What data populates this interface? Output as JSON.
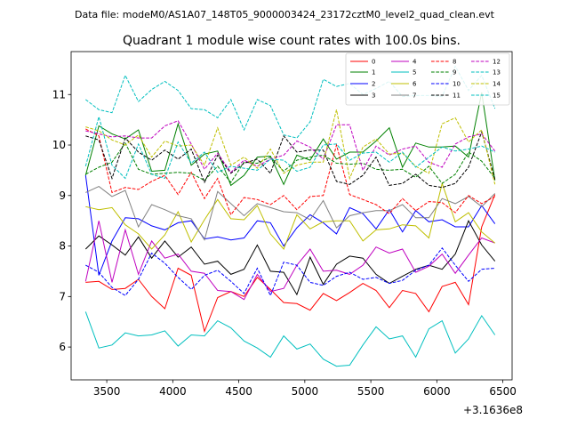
{
  "suptitle": "Data file: modeM0/AS1A07_148T05_9000003424_23172cztM0_level2_quad_clean.evt",
  "chart_data": {
    "type": "line",
    "title": "Quadrant 1 module wise count rates with 100.0s bins.",
    "xlabel": "",
    "ylabel": "",
    "x_offset_label": "+3.1636e8",
    "xlim": [
      3230,
      6570
    ],
    "ylim": [
      5.35,
      11.85
    ],
    "xticks": [
      3500,
      4000,
      4500,
      5000,
      5500,
      6000,
      6500
    ],
    "yticks": [
      6,
      7,
      8,
      9,
      10,
      11
    ],
    "legend_position": "top-right",
    "x": [
      3340,
      3440,
      3540,
      3640,
      3740,
      3840,
      3940,
      4040,
      4140,
      4240,
      4340,
      4440,
      4540,
      4640,
      4740,
      4840,
      4940,
      5040,
      5140,
      5240,
      5340,
      5440,
      5540,
      5640,
      5740,
      5840,
      5940,
      6040,
      6140,
      6240,
      6340,
      6440
    ],
    "series": [
      {
        "name": "0",
        "color": "#ff0000",
        "dash": "solid",
        "values": [
          7.28,
          7.3,
          7.14,
          7.16,
          7.34,
          7.0,
          6.76,
          7.56,
          7.42,
          6.31,
          6.98,
          7.1,
          7.0,
          7.38,
          7.14,
          6.88,
          6.86,
          6.73,
          7.06,
          6.92,
          7.08,
          7.26,
          7.12,
          6.78,
          7.12,
          7.06,
          6.7,
          7.2,
          7.28,
          6.84,
          8.38,
          9.02
        ]
      },
      {
        "name": "1",
        "color": "#008000",
        "dash": "solid",
        "values": [
          9.4,
          10.38,
          10.22,
          10.12,
          10.3,
          9.48,
          9.5,
          10.42,
          9.6,
          9.82,
          9.88,
          9.2,
          9.4,
          9.76,
          9.78,
          9.22,
          9.8,
          9.7,
          10.12,
          9.72,
          9.86,
          9.86,
          10.08,
          10.34,
          9.56,
          10.04,
          9.96,
          9.96,
          9.98,
          9.76,
          11.04,
          9.3
        ]
      },
      {
        "name": "2",
        "color": "#0000ff",
        "dash": "solid",
        "values": [
          9.4,
          7.42,
          8.1,
          8.56,
          8.54,
          8.4,
          8.32,
          8.46,
          8.5,
          8.14,
          8.18,
          8.12,
          8.16,
          8.5,
          8.46,
          8.0,
          8.36,
          8.62,
          8.46,
          8.24,
          8.76,
          8.64,
          8.34,
          8.72,
          8.28,
          8.7,
          8.48,
          8.52,
          8.38,
          8.38,
          8.8,
          8.44
        ]
      },
      {
        "name": "3",
        "color": "#000000",
        "dash": "solid",
        "values": [
          7.94,
          8.2,
          8.02,
          7.82,
          8.18,
          7.76,
          8.1,
          7.78,
          7.98,
          7.64,
          7.7,
          7.44,
          7.54,
          8.02,
          7.5,
          7.48,
          7.04,
          7.78,
          7.24,
          7.64,
          7.8,
          7.76,
          7.44,
          7.26,
          7.4,
          7.54,
          7.62,
          7.54,
          7.84,
          8.5,
          8.02,
          7.7
        ]
      },
      {
        "name": "4",
        "color": "#bf00bf",
        "dash": "solid",
        "values": [
          7.3,
          8.5,
          7.28,
          8.32,
          7.44,
          8.1,
          7.76,
          7.84,
          7.5,
          7.46,
          7.12,
          7.1,
          6.94,
          7.44,
          7.1,
          7.16,
          7.62,
          7.94,
          7.5,
          7.52,
          7.44,
          7.62,
          7.98,
          7.86,
          7.94,
          7.48,
          7.6,
          7.84,
          7.46,
          7.82,
          8.16,
          8.06
        ]
      },
      {
        "name": "5",
        "color": "#00bfbf",
        "dash": "solid",
        "values": [
          6.7,
          5.98,
          6.04,
          6.28,
          6.22,
          6.24,
          6.32,
          6.02,
          6.24,
          6.22,
          6.52,
          6.38,
          6.12,
          5.98,
          5.8,
          6.22,
          5.96,
          6.06,
          5.76,
          5.62,
          5.64,
          6.04,
          6.4,
          6.16,
          6.22,
          5.8,
          6.36,
          6.52,
          5.88,
          6.16,
          6.62,
          6.24
        ]
      },
      {
        "name": "6",
        "color": "#bfbf00",
        "dash": "solid",
        "values": [
          8.78,
          8.72,
          8.76,
          8.42,
          8.24,
          7.94,
          8.22,
          8.68,
          8.08,
          8.52,
          8.92,
          8.54,
          8.52,
          8.8,
          8.24,
          7.94,
          8.62,
          8.34,
          8.48,
          8.5,
          8.5,
          8.1,
          8.32,
          8.34,
          8.42,
          8.4,
          8.16,
          9.24,
          8.48,
          8.66,
          8.28,
          8.06
        ]
      },
      {
        "name": "7",
        "color": "#808080",
        "dash": "solid",
        "values": [
          9.06,
          9.18,
          8.98,
          9.1,
          8.38,
          8.82,
          8.72,
          8.6,
          8.54,
          8.12,
          9.08,
          8.84,
          8.6,
          8.84,
          8.76,
          8.68,
          8.66,
          8.52,
          8.9,
          8.36,
          8.6,
          8.66,
          8.7,
          8.7,
          8.82,
          8.56,
          8.56,
          8.94,
          8.84,
          8.98,
          8.78,
          9.04
        ]
      },
      {
        "name": "8",
        "color": "#ff0000",
        "dash": "dashed",
        "values": [
          10.32,
          10.18,
          9.06,
          9.16,
          9.12,
          9.28,
          9.4,
          9.02,
          9.46,
          8.94,
          9.34,
          8.62,
          8.96,
          8.92,
          8.82,
          9.0,
          8.72,
          8.98,
          9.0,
          10.0,
          9.02,
          8.92,
          8.82,
          8.64,
          8.94,
          8.7,
          8.88,
          8.86,
          8.66,
          9.0,
          8.84,
          8.98
        ]
      },
      {
        "name": "9",
        "color": "#008000",
        "dash": "dashed",
        "values": [
          9.42,
          9.56,
          9.66,
          10.04,
          9.52,
          9.42,
          9.44,
          9.46,
          9.44,
          9.3,
          9.58,
          9.26,
          9.66,
          9.64,
          9.76,
          9.48,
          9.7,
          9.76,
          9.8,
          9.64,
          9.62,
          9.64,
          9.52,
          9.5,
          9.52,
          9.36,
          9.58,
          9.24,
          9.42,
          9.86,
          9.68,
          9.34
        ]
      },
      {
        "name": "10",
        "color": "#0000ff",
        "dash": "dashed",
        "values": [
          7.62,
          7.48,
          7.18,
          7.02,
          7.34,
          7.86,
          7.66,
          7.38,
          7.14,
          7.42,
          7.52,
          7.3,
          7.06,
          7.56,
          7.02,
          7.68,
          7.62,
          7.28,
          7.22,
          7.4,
          7.48,
          7.34,
          7.38,
          7.26,
          7.32,
          7.52,
          7.62,
          7.96,
          7.62,
          7.3,
          7.54,
          7.56
        ]
      },
      {
        "name": "11",
        "color": "#000000",
        "dash": "dashed",
        "values": [
          10.18,
          10.1,
          9.34,
          10.14,
          9.86,
          9.7,
          9.9,
          9.72,
          9.92,
          9.26,
          9.8,
          9.44,
          9.64,
          9.72,
          9.44,
          10.18,
          9.86,
          9.9,
          9.9,
          9.28,
          9.22,
          9.4,
          9.76,
          9.2,
          9.24,
          9.42,
          9.2,
          9.16,
          9.24,
          9.56,
          10.26,
          9.32
        ]
      },
      {
        "name": "12",
        "color": "#bf00bf",
        "dash": "dashed",
        "values": [
          10.28,
          10.22,
          10.16,
          10.18,
          10.14,
          10.14,
          10.38,
          10.48,
          10.02,
          9.52,
          9.84,
          9.46,
          9.7,
          9.58,
          9.72,
          9.8,
          10.08,
          9.96,
          9.72,
          10.4,
          10.4,
          9.5,
          9.98,
          9.8,
          9.92,
          9.98,
          9.66,
          9.56,
          10.02,
          10.16,
          10.22,
          9.88
        ]
      },
      {
        "name": "13",
        "color": "#00bfbf",
        "dash": "dashed",
        "values": [
          10.9,
          10.7,
          10.64,
          11.38,
          10.86,
          11.1,
          11.26,
          11.08,
          10.72,
          10.7,
          10.54,
          10.9,
          10.3,
          10.9,
          10.78,
          10.2,
          10.14,
          10.46,
          11.3,
          11.16,
          11.22,
          11.0,
          11.12,
          11.26,
          10.96,
          10.98,
          10.98,
          10.96,
          11.56,
          11.08,
          11.38,
          10.72
        ]
      },
      {
        "name": "14",
        "color": "#bfbf00",
        "dash": "dashed",
        "values": [
          10.36,
          10.28,
          10.1,
          10.0,
          10.2,
          9.76,
          10.08,
          9.98,
          10.0,
          9.6,
          10.34,
          9.6,
          9.76,
          9.54,
          9.92,
          9.44,
          9.6,
          9.66,
          9.66,
          10.7,
          9.34,
          9.96,
          10.12,
          9.82,
          9.84,
          9.58,
          9.44,
          10.42,
          10.54,
          10.06,
          10.3,
          9.22
        ]
      },
      {
        "name": "15",
        "color": "#00bfbf",
        "dash": "dashed",
        "values": [
          9.58,
          10.56,
          9.6,
          9.34,
          10.02,
          9.42,
          9.34,
          10.06,
          9.64,
          9.86,
          9.46,
          9.58,
          9.54,
          9.5,
          9.72,
          9.7,
          9.48,
          9.56,
          10.0,
          10.02,
          9.7,
          9.84,
          9.86,
          9.66,
          9.86,
          9.56,
          9.76,
          9.96,
          9.88,
          9.92,
          9.98,
          9.86
        ]
      }
    ]
  }
}
